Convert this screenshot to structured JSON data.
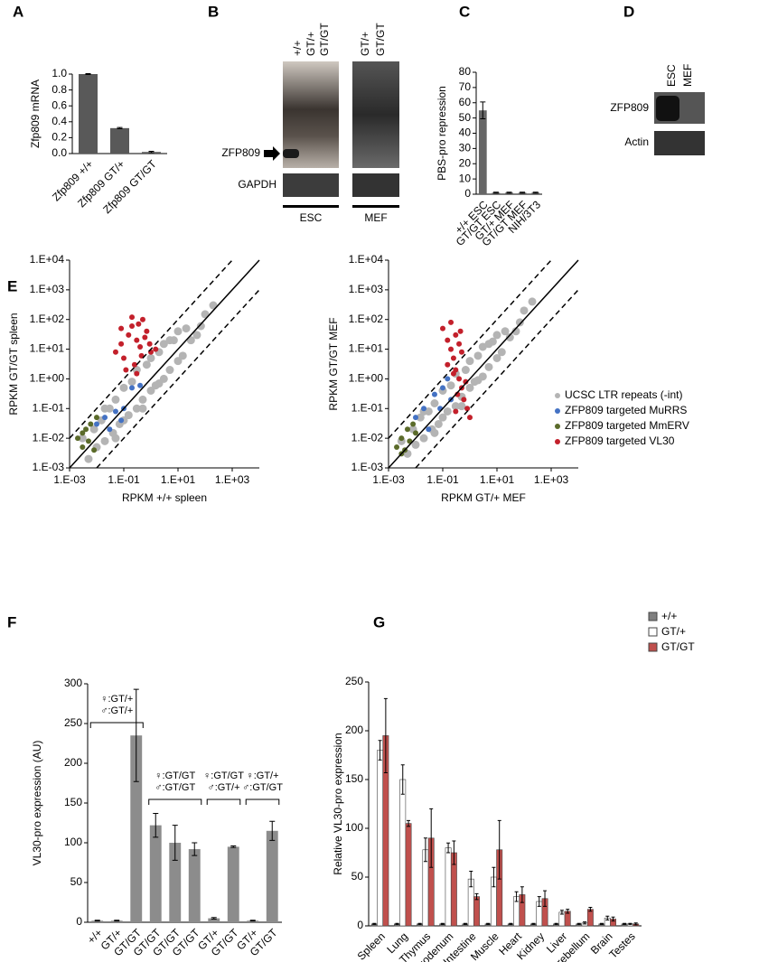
{
  "panel_labels": [
    "A",
    "B",
    "C",
    "D",
    "E",
    "F",
    "G"
  ],
  "blots": {
    "b": {
      "lanes_left": [
        "+/+",
        "GT/+",
        "GT/GT"
      ],
      "lanes_right": [
        "GT/+",
        "GT/GT"
      ],
      "band_label": "ZFP809",
      "loading_label": "GAPDH",
      "groups": [
        "ESC",
        "MEF"
      ]
    },
    "d": {
      "lanes": [
        "ESC",
        "MEF"
      ],
      "rows": [
        "ZFP809",
        "Actin"
      ]
    }
  },
  "chart_data": [
    {
      "type": "bar",
      "ylabel": "Zfp809 mRNA",
      "categories": [
        "Zfp809 +/+",
        "Zfp809 GT/+",
        "Zfp809 GT/GT"
      ],
      "values": [
        1.0,
        0.32,
        0.02
      ],
      "errors": [
        0.005,
        0.008,
        0.008
      ],
      "color": "#595959",
      "ylim": [
        0,
        1.0
      ],
      "yticks": [
        {
          "value": 0,
          "label": "0.0"
        },
        {
          "value": 0.2,
          "label": "0.2"
        },
        {
          "value": 0.4,
          "label": "0.4"
        },
        {
          "value": 0.6,
          "label": "0.6"
        },
        {
          "value": 0.8,
          "label": "0.8"
        },
        {
          "value": 1,
          "label": "1.0"
        }
      ]
    },
    {
      "type": "bar",
      "ylabel": "PBS-pro repression",
      "categories": [
        "+/+ ESC",
        "GT/GT ESC",
        "GT/+ MEF",
        "GT/GT MEF",
        "NIH/3T3"
      ],
      "values": [
        55,
        1,
        1,
        1,
        1
      ],
      "errors": [
        5.5,
        0.3,
        0.3,
        0.3,
        0.3
      ],
      "color": "#666666",
      "ylim": [
        0,
        80
      ],
      "yticks": [
        0,
        10,
        20,
        30,
        40,
        50,
        60,
        70,
        80
      ]
    },
    {
      "type": "scatter",
      "xlabel": "RPKM +/+ spleen",
      "ylabel": "RPKM GT/GT spleen",
      "log": true,
      "xlim": [
        0.001,
        10000
      ],
      "ylim": [
        0.001,
        10000
      ],
      "xticks": [
        {
          "value": 0.001,
          "label": "1.E-03"
        },
        {
          "value": 0.1,
          "label": "1.E-01"
        },
        {
          "value": 10,
          "label": "1.E+01"
        },
        {
          "value": 1000,
          "label": "1.E+03"
        }
      ],
      "yticks": [
        {
          "value": 0.001,
          "label": "1.E-03"
        },
        {
          "value": 0.01,
          "label": "1.E-02"
        },
        {
          "value": 0.1,
          "label": "1.E-01"
        },
        {
          "value": 1,
          "label": "1.E+00"
        },
        {
          "value": 10,
          "label": "1.E+01"
        },
        {
          "value": 100,
          "label": "1.E+02"
        },
        {
          "value": 1000,
          "label": "1.E+03"
        },
        {
          "value": 10000,
          "label": "1.E+04"
        }
      ],
      "reference_lines": [
        {
          "ratio": 1,
          "dashed": false
        },
        {
          "ratio": 10,
          "dashed": true
        },
        {
          "ratio": 0.1,
          "dashed": true
        }
      ],
      "series": [
        {
          "color": "#b4b4b4",
          "x": [
            0.003,
            0.005,
            0.008,
            0.01,
            0.015,
            0.02,
            0.03,
            0.04,
            0.05,
            0.07,
            0.1,
            0.1,
            0.15,
            0.2,
            0.3,
            0.3,
            0.5,
            0.7,
            1,
            1,
            1.5,
            2,
            3,
            3,
            5,
            7,
            10,
            10,
            15,
            20,
            30,
            50,
            70,
            100,
            200,
            0.02,
            0.05,
            0.5,
            2,
            5
          ],
          "values": [
            0.01,
            0.002,
            0.02,
            0.005,
            0.04,
            0.008,
            0.1,
            0.015,
            0.2,
            0.03,
            0.5,
            0.04,
            0.06,
            0.8,
            0.1,
            2,
            0.2,
            3,
            0.4,
            5,
            0.6,
            8,
            1,
            15,
            2,
            20,
            4,
            40,
            6,
            50,
            20,
            30,
            60,
            150,
            300,
            0.1,
            0.01,
            0.1,
            0.7,
            20
          ]
        },
        {
          "color": "#4472c4",
          "x": [
            0.01,
            0.02,
            0.03,
            0.05,
            0.08,
            0.1,
            0.2,
            0.4
          ],
          "values": [
            0.03,
            0.05,
            0.02,
            0.08,
            0.04,
            0.1,
            0.5,
            0.6
          ]
        },
        {
          "color": "#5b6b2a",
          "x": [
            0.002,
            0.003,
            0.004,
            0.005,
            0.006,
            0.008,
            0.01,
            0.003
          ],
          "values": [
            0.01,
            0.005,
            0.02,
            0.008,
            0.03,
            0.004,
            0.05,
            0.015
          ]
        },
        {
          "color": "#c3202b",
          "x": [
            0.05,
            0.08,
            0.1,
            0.15,
            0.2,
            0.3,
            0.4,
            0.5,
            0.7,
            1,
            0.12,
            0.25,
            0.35,
            0.6,
            0.9,
            1.5,
            0.2,
            0.45,
            0.08,
            0.3
          ],
          "values": [
            8,
            15,
            5,
            30,
            60,
            20,
            12,
            100,
            40,
            8,
            2,
            3,
            70,
            25,
            15,
            10,
            120,
            6,
            50,
            1.5
          ]
        }
      ]
    },
    {
      "type": "scatter",
      "xlabel": "RPKM GT/+ MEF",
      "ylabel": "RPKM GT/GT MEF",
      "log": true,
      "legend": "right",
      "xlim": [
        0.001,
        10000
      ],
      "ylim": [
        0.001,
        10000
      ],
      "xticks": [
        {
          "value": 0.001,
          "label": "1.E-03"
        },
        {
          "value": 0.1,
          "label": "1.E-01"
        },
        {
          "value": 10,
          "label": "1.E+01"
        },
        {
          "value": 1000,
          "label": "1.E+03"
        }
      ],
      "yticks": [
        {
          "value": 0.001,
          "label": "1.E-03"
        },
        {
          "value": 0.01,
          "label": "1.E-02"
        },
        {
          "value": 0.1,
          "label": "1.E-01"
        },
        {
          "value": 1,
          "label": "1.E+00"
        },
        {
          "value": 10,
          "label": "1.E+01"
        },
        {
          "value": 100,
          "label": "1.E+02"
        },
        {
          "value": 1000,
          "label": "1.E+03"
        },
        {
          "value": 10000,
          "label": "1.E+04"
        }
      ],
      "reference_lines": [
        {
          "ratio": 1,
          "dashed": false
        },
        {
          "ratio": 10,
          "dashed": true
        },
        {
          "ratio": 0.1,
          "dashed": true
        }
      ],
      "series": [
        {
          "name": "UCSC LTR repeats (-int)",
          "color": "#b4b4b4",
          "x": [
            0.003,
            0.005,
            0.008,
            0.01,
            0.015,
            0.02,
            0.03,
            0.04,
            0.05,
            0.07,
            0.1,
            0.1,
            0.15,
            0.2,
            0.3,
            0.3,
            0.5,
            0.7,
            1,
            1,
            1.5,
            2,
            3,
            3,
            5,
            7,
            10,
            10,
            15,
            20,
            30,
            50,
            70,
            100,
            200,
            0.02,
            0.05,
            0.5,
            2,
            5
          ],
          "values": [
            0.008,
            0.003,
            0.02,
            0.006,
            0.05,
            0.01,
            0.08,
            0.02,
            0.15,
            0.03,
            0.4,
            0.05,
            0.08,
            0.6,
            0.12,
            1.5,
            0.25,
            2,
            0.5,
            4,
            0.8,
            6,
            1.2,
            12,
            2.5,
            18,
            5,
            30,
            8,
            40,
            25,
            40,
            80,
            200,
            400,
            0.08,
            0.015,
            0.12,
            0.9,
            15
          ]
        },
        {
          "name": "ZFP809 targeted MuRRS",
          "color": "#4472c4",
          "x": [
            0.01,
            0.02,
            0.03,
            0.05,
            0.08,
            0.1,
            0.15,
            0.2
          ],
          "values": [
            0.05,
            0.1,
            0.02,
            0.3,
            0.1,
            0.5,
            1,
            0.2
          ]
        },
        {
          "name": "ZFP809 targeted MmERV",
          "color": "#5b6b2a",
          "x": [
            0.002,
            0.003,
            0.004,
            0.005,
            0.006,
            0.008,
            0.01,
            0.003
          ],
          "values": [
            0.005,
            0.01,
            0.004,
            0.02,
            0.008,
            0.03,
            0.015,
            0.003
          ]
        },
        {
          "name": "ZFP809 targeted VL30",
          "color": "#c3202b",
          "x": [
            0.1,
            0.15,
            0.2,
            0.25,
            0.3,
            0.4,
            0.5,
            0.6,
            0.8,
            1,
            0.2,
            0.3,
            0.4,
            0.5,
            0.15,
            0.35,
            0.25,
            0.7,
            0.45,
            0.3
          ],
          "values": [
            50,
            20,
            10,
            5,
            2,
            1,
            0.5,
            0.2,
            0.1,
            0.05,
            80,
            30,
            15,
            8,
            3,
            0.3,
            1.5,
            0.8,
            40,
            0.08
          ]
        }
      ]
    },
    {
      "type": "bar",
      "ylabel": "VL30-pro expression (AU)",
      "categories": [
        "+/+",
        "GT/+",
        "GT/GT",
        "GT/GT",
        "GT/GT",
        "GT/GT",
        "GT/+",
        "GT/GT",
        "GT/+",
        "GT/GT"
      ],
      "values": [
        2,
        2,
        235,
        122,
        100,
        92,
        5,
        95,
        2,
        115
      ],
      "errors": [
        0.5,
        0.5,
        58,
        15,
        22,
        8,
        1,
        1,
        0.5,
        12
      ],
      "color": "#8c8c8c",
      "ylim": [
        0,
        300
      ],
      "yticks": [
        0,
        50,
        100,
        150,
        200,
        250,
        300
      ],
      "brackets": [
        {
          "first": 0,
          "last": 2,
          "lines": [
            "♀:GT/+",
            "♂:GT/+"
          ]
        },
        {
          "first": 3,
          "last": 5,
          "lines": [
            "♀:GT/GT",
            "♂:GT/GT"
          ]
        },
        {
          "first": 6,
          "last": 7,
          "lines": [
            "♀:GT/GT",
            "♂:GT/+"
          ]
        },
        {
          "first": 8,
          "last": 9,
          "lines": [
            "♀:GT/+",
            "♂:GT/GT"
          ]
        }
      ]
    },
    {
      "type": "grouped_bar",
      "ylabel": "Relative VL30-pro expression",
      "legend": "top-right",
      "categories": [
        "Spleen",
        "Lung",
        "Thymus",
        "Duodenum",
        "Intestine",
        "Muscle",
        "Heart",
        "Kidney",
        "Liver",
        "Cerebellum",
        "Brain",
        "Testes"
      ],
      "ylim": [
        0,
        250
      ],
      "yticks": [
        0,
        50,
        100,
        150,
        200,
        250
      ],
      "series": [
        {
          "name": "+/+",
          "color": "#7f7f7f",
          "values": [
            2,
            2,
            2,
            2,
            2,
            2,
            2,
            2,
            2,
            2,
            2,
            2
          ],
          "errors": [
            0.5,
            0.5,
            0.5,
            0.5,
            0.5,
            0.5,
            0.5,
            0.5,
            0.5,
            0.5,
            0.5,
            0.5
          ]
        },
        {
          "name": "GT/+",
          "color": "#ffffff",
          "values": [
            180,
            150,
            78,
            80,
            48,
            50,
            30,
            25,
            14,
            3,
            8,
            2
          ],
          "errors": [
            10,
            15,
            12,
            5,
            8,
            10,
            5,
            5,
            2,
            1,
            2,
            0.5
          ]
        },
        {
          "name": "GT/GT",
          "color": "#c0504d",
          "values": [
            195,
            105,
            90,
            75,
            30,
            78,
            32,
            28,
            15,
            17,
            7,
            2
          ],
          "errors": [
            38,
            3,
            30,
            12,
            3,
            30,
            8,
            8,
            2,
            2,
            2,
            1
          ]
        }
      ]
    }
  ]
}
